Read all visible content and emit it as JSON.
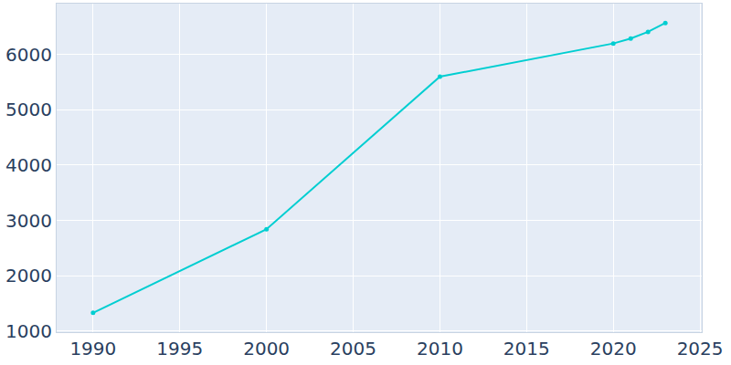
{
  "chart_data": {
    "type": "line",
    "x": [
      1990,
      2000,
      2010,
      2020,
      2021,
      2022,
      2023
    ],
    "values": [
      1330,
      2840,
      5600,
      6200,
      6290,
      6410,
      6570
    ],
    "color": "#00ced1",
    "marker": "circle",
    "xlim": [
      1987.9,
      2025.1
    ],
    "xticks": [
      1990,
      1995,
      2000,
      2005,
      2010,
      2015,
      2020,
      2025
    ],
    "ylim": [
      980,
      6920
    ],
    "yticks": [
      1000,
      2000,
      3000,
      4000,
      5000,
      6000
    ],
    "grid": true
  }
}
